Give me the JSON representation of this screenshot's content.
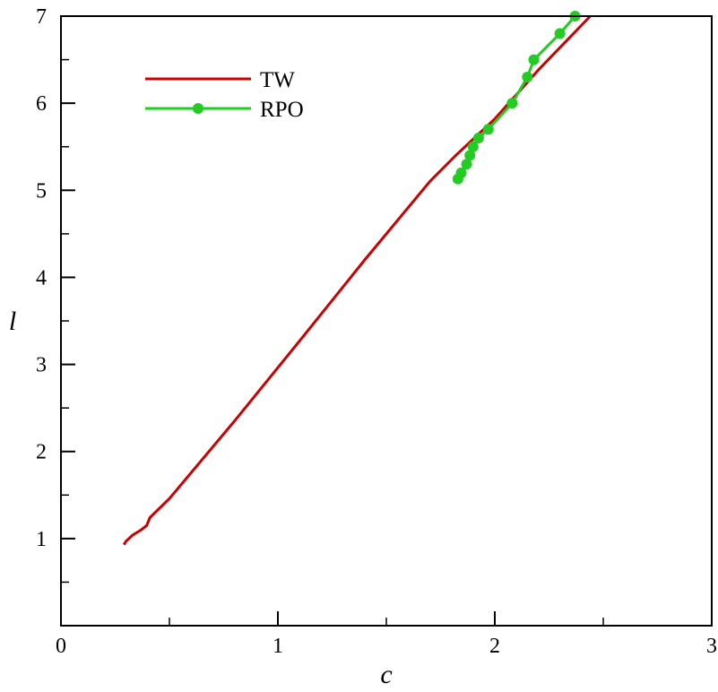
{
  "chart_data": {
    "type": "line",
    "title": "",
    "xlabel": "c",
    "ylabel": "l",
    "xlim": [
      0,
      3
    ],
    "ylim": [
      0,
      7
    ],
    "x_ticks": [
      0,
      1,
      2,
      3
    ],
    "y_ticks": [
      1,
      2,
      3,
      4,
      5,
      6,
      7
    ],
    "x_minor_ticks": [
      0.5,
      1.5,
      2.5
    ],
    "grid": false,
    "legend_position": "top-left",
    "series": [
      {
        "name": "TW",
        "color": "#cc0000",
        "marker": false,
        "points": [
          [
            0.29,
            0.93
          ],
          [
            0.3,
            0.97
          ],
          [
            0.33,
            1.04
          ],
          [
            0.37,
            1.1
          ],
          [
            0.395,
            1.15
          ],
          [
            0.41,
            1.24
          ],
          [
            0.5,
            1.46
          ],
          [
            0.8,
            2.35
          ],
          [
            1.1,
            3.27
          ],
          [
            1.4,
            4.2
          ],
          [
            1.7,
            5.1
          ],
          [
            1.82,
            5.4
          ],
          [
            2.0,
            5.82
          ],
          [
            2.2,
            6.38
          ],
          [
            2.44,
            7.0
          ]
        ]
      },
      {
        "name": "RPO",
        "color": "#22cc22",
        "marker": true,
        "points": [
          [
            1.83,
            5.13
          ],
          [
            1.845,
            5.2
          ],
          [
            1.87,
            5.3
          ],
          [
            1.885,
            5.4
          ],
          [
            1.9,
            5.5
          ],
          [
            1.925,
            5.6
          ],
          [
            1.97,
            5.7
          ],
          [
            2.08,
            6.0
          ],
          [
            2.15,
            6.3
          ],
          [
            2.18,
            6.5
          ],
          [
            2.3,
            6.8
          ],
          [
            2.37,
            7.0
          ]
        ]
      }
    ]
  }
}
